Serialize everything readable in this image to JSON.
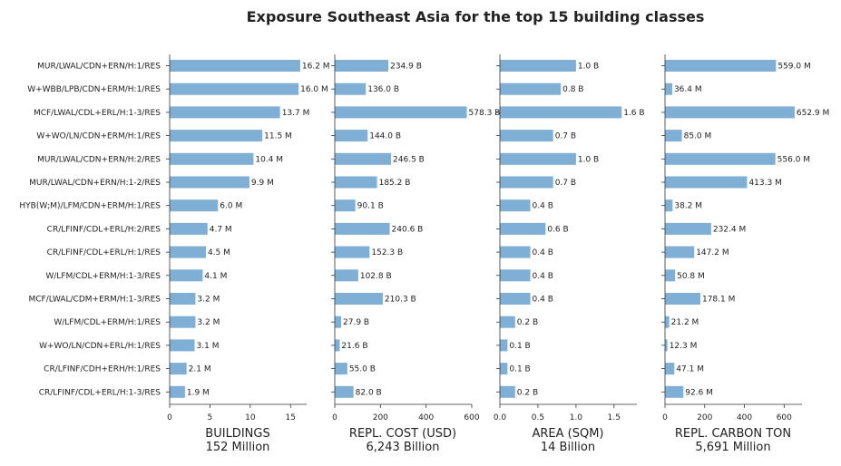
{
  "chart_data": {
    "type": "bar",
    "title": "Exposure Southeast Asia for the top 15 building classes",
    "categories": [
      "MUR/LWAL/CDN+ERN/H:1/RES",
      "W+WBB/LPB/CDN+ERM/H:1/RES",
      "MCF/LWAL/CDL+ERL/H:1-3/RES",
      "W+WO/LN/CDN+ERM/H:1/RES",
      "MUR/LWAL/CDN+ERN/H:2/RES",
      "MUR/LWAL/CDN+ERN/H:1-2/RES",
      "HYB(W;M)/LFM/CDN+ERM/H:1/RES",
      "CR/LFINF/CDL+ERL/H:2/RES",
      "CR/LFINF/CDL+ERL/H:1/RES",
      "W/LFM/CDL+ERM/H:1-3/RES",
      "MCF/LWAL/CDM+ERM/H:1-3/RES",
      "W/LFM/CDL+ERM/H:1/RES",
      "W+WO/LN/CDN+ERL/H:1/RES",
      "CR/LFINF/CDH+ERH/H:1/RES",
      "CR/LFINF/CDL+ERL/H:1-3/RES"
    ],
    "panels": [
      {
        "xlabel": "BUILDINGS",
        "total": "152 Million",
        "xlim": [
          0,
          17
        ],
        "ticks": [
          0,
          5,
          10,
          15
        ],
        "tick_labels": [
          "0",
          "5",
          "10",
          "15"
        ],
        "values": [
          16.2,
          16.0,
          13.7,
          11.5,
          10.4,
          9.9,
          6.0,
          4.7,
          4.5,
          4.1,
          3.2,
          3.2,
          3.1,
          2.1,
          1.9
        ],
        "labels": [
          "16.2 M",
          "16.0 M",
          "13.7 M",
          "11.5 M",
          "10.4 M",
          "9.9 M",
          "6.0 M",
          "4.7 M",
          "4.5 M",
          "4.1 M",
          "3.2 M",
          "3.2 M",
          "3.1 M",
          "2.1 M",
          "1.9 M"
        ]
      },
      {
        "xlabel": "REPL. COST (USD)",
        "total": "6,243 Billion",
        "xlim": [
          0,
          600
        ],
        "ticks": [
          0,
          200,
          400,
          600
        ],
        "tick_labels": [
          "0",
          "200",
          "400",
          "600"
        ],
        "values": [
          234.9,
          136.0,
          578.3,
          144.0,
          246.5,
          185.2,
          90.1,
          240.6,
          152.3,
          102.8,
          210.3,
          27.9,
          21.6,
          55.0,
          82.0
        ],
        "labels": [
          "234.9 B",
          "136.0 B",
          "578.3 B",
          "144.0 B",
          "246.5 B",
          "185.2 B",
          "90.1 B",
          "240.6 B",
          "152.3 B",
          "102.8 B",
          "210.3 B",
          "27.9 B",
          "21.6 B",
          "55.0 B",
          "82.0 B"
        ]
      },
      {
        "xlabel": "AREA (SQM)",
        "total": "14 Billion",
        "xlim": [
          0,
          1.8
        ],
        "ticks": [
          0,
          0.5,
          1.0,
          1.5
        ],
        "tick_labels": [
          "0.0",
          "0.5",
          "1.0",
          "1.5"
        ],
        "values": [
          1.0,
          0.8,
          1.6,
          0.7,
          1.0,
          0.7,
          0.4,
          0.6,
          0.4,
          0.4,
          0.4,
          0.2,
          0.1,
          0.1,
          0.2
        ],
        "labels": [
          "1.0 B",
          "0.8 B",
          "1.6 B",
          "0.7 B",
          "1.0 B",
          "0.7 B",
          "0.4 B",
          "0.6 B",
          "0.4 B",
          "0.4 B",
          "0.4 B",
          "0.2 B",
          "0.1 B",
          "0.1 B",
          "0.2 B"
        ]
      },
      {
        "xlabel": "REPL. CARBON TON",
        "total": "5,691 Million",
        "xlim": [
          0,
          690
        ],
        "ticks": [
          0,
          200,
          400,
          600
        ],
        "tick_labels": [
          "0",
          "200",
          "400",
          "600"
        ],
        "values": [
          559.0,
          36.4,
          652.9,
          85.0,
          556.0,
          413.3,
          38.2,
          232.4,
          147.2,
          50.8,
          178.1,
          21.2,
          12.3,
          47.1,
          92.6
        ],
        "labels": [
          "559.0 M",
          "36.4 M",
          "652.9 M",
          "85.0 M",
          "556.0 M",
          "413.3 M",
          "38.2 M",
          "232.4 M",
          "147.2 M",
          "50.8 M",
          "178.1 M",
          "21.2 M",
          "12.3 M",
          "47.1 M",
          "92.6 M"
        ]
      }
    ],
    "bar_color": "#7fafd4",
    "grid": false,
    "legend": "none"
  }
}
